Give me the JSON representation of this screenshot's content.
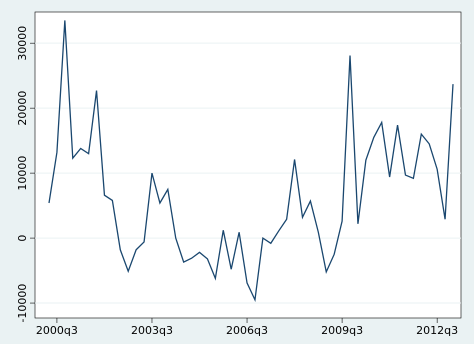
{
  "chart_data": {
    "type": "line",
    "categories": [
      null,
      "2000q3",
      null,
      null,
      null,
      null,
      null,
      null,
      null,
      null,
      null,
      null,
      null,
      "2003q3",
      null,
      null,
      null,
      null,
      null,
      null,
      null,
      null,
      null,
      null,
      null,
      "2006q3",
      null,
      null,
      null,
      null,
      null,
      null,
      null,
      null,
      null,
      null,
      null,
      "2009q3",
      null,
      null,
      null,
      null,
      null,
      null,
      null,
      null,
      null,
      null,
      null,
      "2012q3",
      null,
      null
    ],
    "series": [
      {
        "color": "#1a476f",
        "values": [
          5400,
          13200,
          33500,
          12300,
          13800,
          13000,
          22700,
          6600,
          5800,
          -1800,
          -5100,
          -1800,
          -600,
          10000,
          5400,
          7500,
          0,
          -3700,
          -3100,
          -2200,
          -3200,
          -6200,
          1200,
          -4800,
          900,
          -6900,
          -9500,
          0,
          -800,
          1100,
          2900,
          12100,
          3200,
          5700,
          900,
          -5200,
          -2500,
          2600,
          28100,
          2200,
          12000,
          15500,
          17800,
          9400,
          17400,
          9700,
          9200,
          16000,
          14500,
          10600,
          2900,
          23700
        ]
      }
    ],
    "ylim": [
      -12300,
      34800
    ],
    "yticks": [
      -10000,
      0,
      10000,
      20000,
      30000
    ],
    "grid": true
  }
}
